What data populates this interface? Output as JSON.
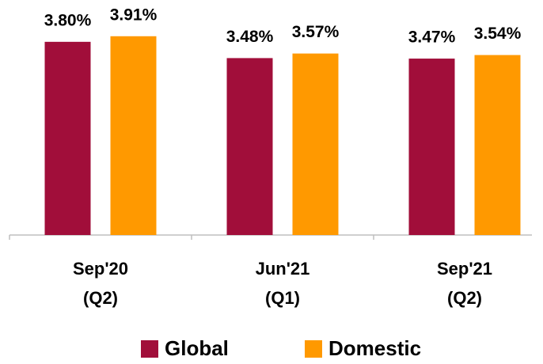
{
  "chart_data": {
    "type": "bar",
    "categories": [
      [
        "Sep'20",
        "(Q2)"
      ],
      [
        "Jun'21",
        "(Q1)"
      ],
      [
        "Sep'21",
        "(Q2)"
      ]
    ],
    "series": [
      {
        "name": "Global",
        "color": "#a10e3a",
        "values": [
          3.8,
          3.48,
          3.47
        ],
        "value_labels": [
          "3.80%",
          "3.48%",
          "3.47%"
        ]
      },
      {
        "name": "Domestic",
        "color": "#ff9900",
        "values": [
          3.91,
          3.57,
          3.54
        ],
        "value_labels": [
          "3.91%",
          "3.57%",
          "3.54%"
        ]
      }
    ],
    "ylim": [
      0,
      4
    ]
  }
}
